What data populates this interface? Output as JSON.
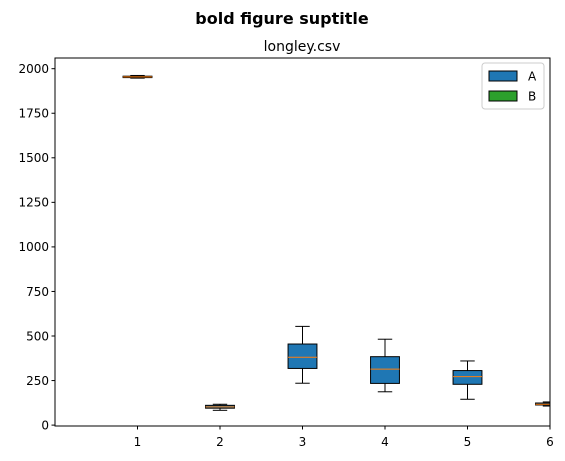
{
  "chart_data": {
    "type": "box",
    "suptitle": "bold figure suptitle",
    "title": "longley.csv",
    "xlabel": "",
    "ylabel": "",
    "xlim": [
      0,
      6
    ],
    "ylim": [
      -5,
      2060
    ],
    "x_ticks": [
      "1",
      "2",
      "3",
      "4",
      "5",
      "6"
    ],
    "y_ticks": [
      0,
      250,
      500,
      750,
      1000,
      1250,
      1500,
      1750,
      2000
    ],
    "legend": {
      "placement": "top-right",
      "entries": [
        {
          "label": "A",
          "color": "#1f77b4"
        },
        {
          "label": "B",
          "color": "#2ca02c"
        }
      ]
    },
    "colors": {
      "box_fill": "#1f77b4",
      "median": "#ff7f0e",
      "edge": "#000000"
    },
    "boxes": [
      {
        "position": 1,
        "whislo": 1947,
        "q1": 1950,
        "med": 1954,
        "q3": 1958,
        "whishi": 1962
      },
      {
        "position": 2,
        "whislo": 83,
        "q1": 95,
        "med": 102,
        "q3": 111,
        "whishi": 117
      },
      {
        "position": 3,
        "whislo": 235,
        "q1": 318,
        "med": 381,
        "q3": 455,
        "whishi": 554
      },
      {
        "position": 4,
        "whislo": 187,
        "q1": 234,
        "med": 314,
        "q3": 384,
        "whishi": 482
      },
      {
        "position": 5,
        "whislo": 145,
        "q1": 229,
        "med": 272,
        "q3": 306,
        "whishi": 360
      },
      {
        "position": 6,
        "whislo": 107,
        "q1": 113,
        "med": 117,
        "q3": 124,
        "whishi": 130
      }
    ]
  }
}
